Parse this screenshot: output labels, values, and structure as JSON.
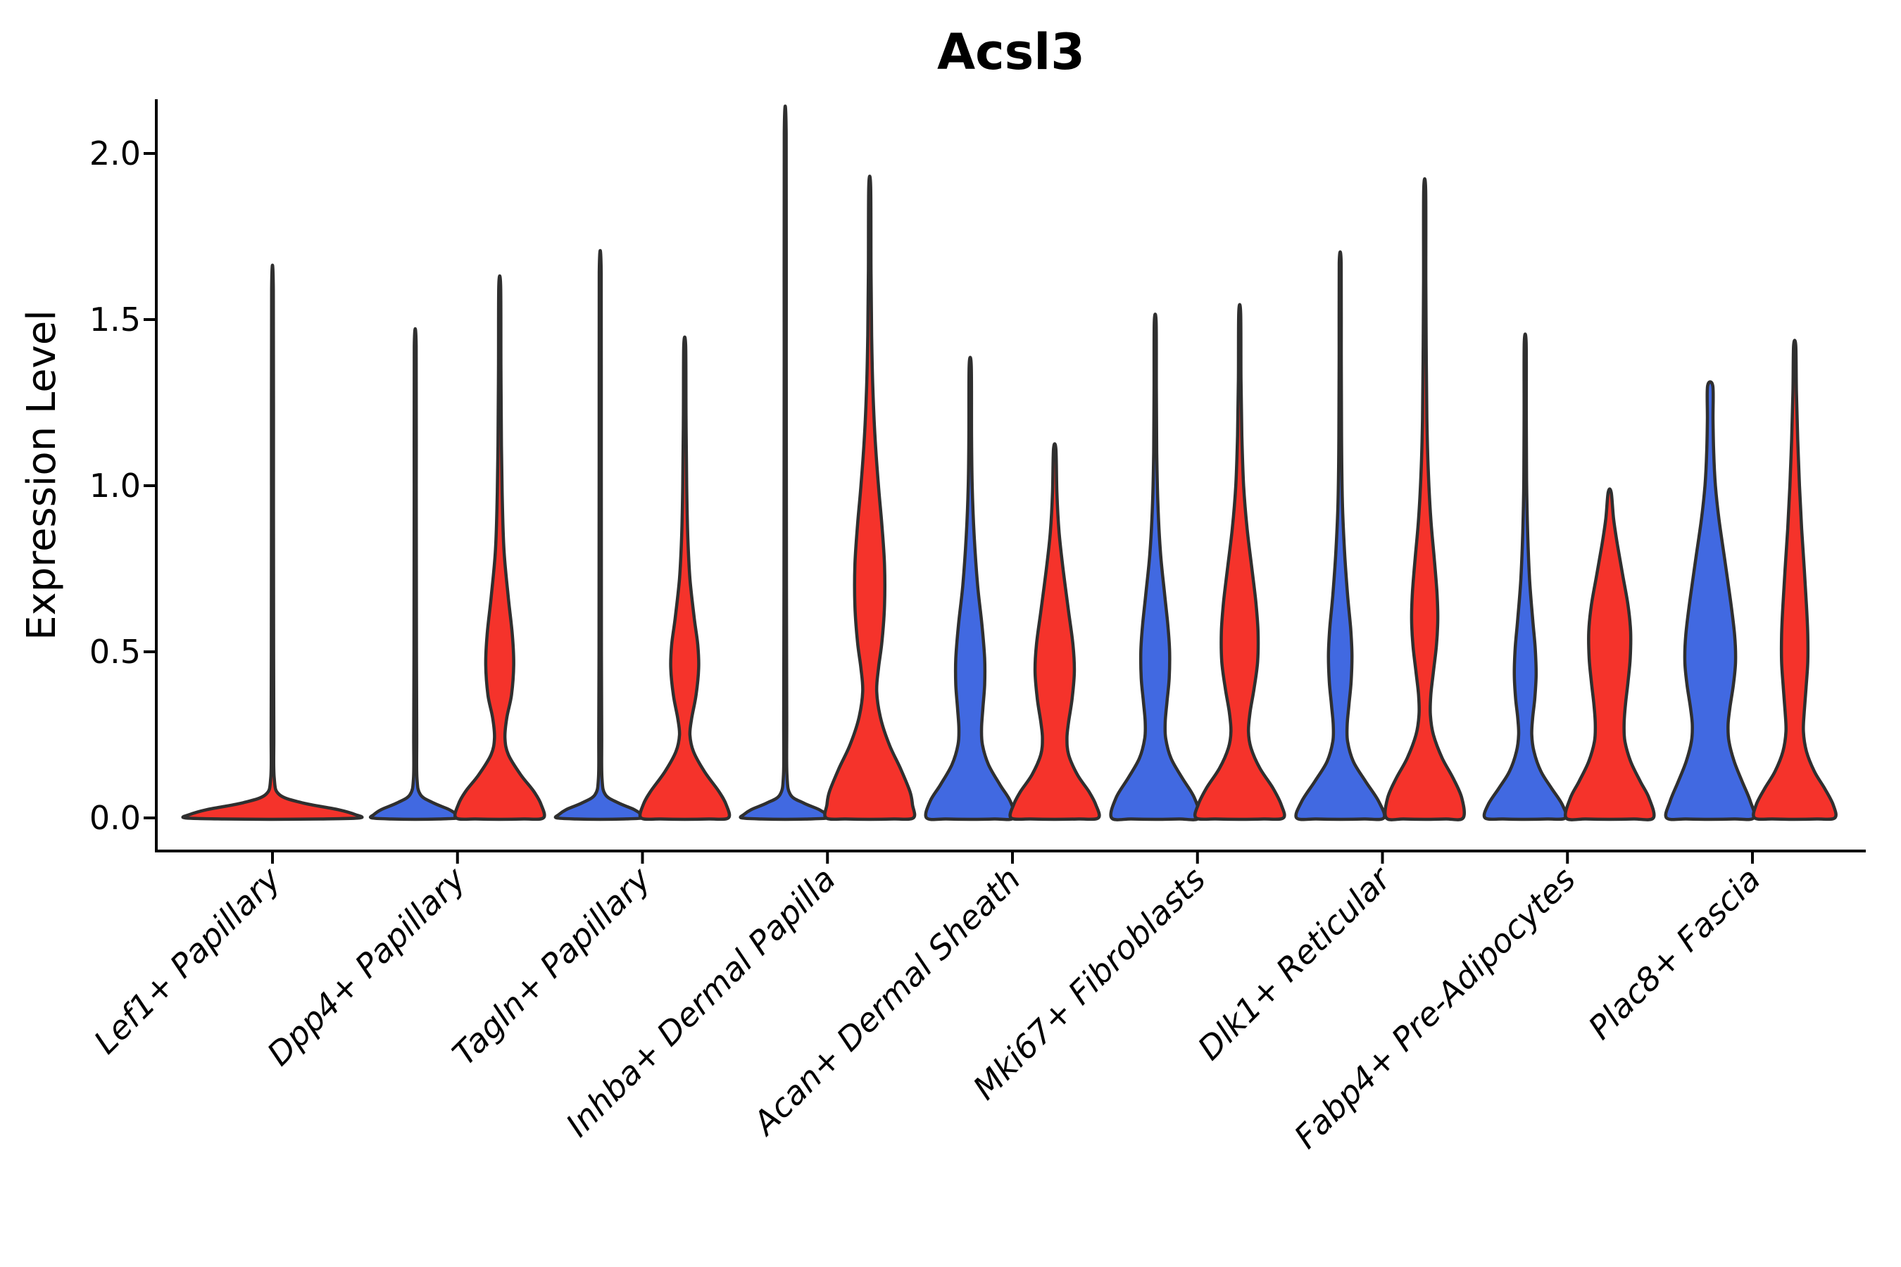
{
  "chart_data": {
    "type": "violin",
    "title": "Acsl3",
    "ylabel": "Expression Level",
    "xlabel": "",
    "ylim": [
      -0.07,
      2.16
    ],
    "grid": false,
    "legend": "none",
    "yticks": {
      "values": [
        0.0,
        0.5,
        1.0,
        1.5,
        2.0
      ],
      "labels": [
        "0.0",
        "0.5",
        "1.0",
        "1.5",
        "2.0"
      ]
    },
    "categories": [
      "Lef1+ Papillary",
      "Dpp4+ Papillary",
      "Tagln+ Papillary",
      "Inhba+ Dermal Papilla",
      "Acan+ Dermal Sheath",
      "Mki67+ Fibroblasts",
      "Dlk1+ Reticular",
      "Fabp4+ Pre-Adipocytes",
      "Plac8+ Fascia"
    ],
    "palette": {
      "blue": "#4169E1",
      "red": "#F5332B",
      "outline": "#2F2F2F",
      "axis": "#000000"
    },
    "violins": [
      {
        "category_index": 0,
        "side": "center",
        "color_key": "red",
        "max_value": 1.59,
        "profile": [
          [
            1.59,
            0.01
          ],
          [
            1.0,
            0.011
          ],
          [
            0.5,
            0.013
          ],
          [
            0.25,
            0.015
          ],
          [
            0.12,
            0.02
          ],
          [
            0.07,
            0.08
          ],
          [
            0.045,
            0.35
          ],
          [
            0.025,
            0.75
          ],
          [
            0.01,
            0.95
          ],
          [
            0,
            1.0
          ]
        ]
      },
      {
        "category_index": 1,
        "side": "left",
        "color_key": "blue",
        "max_value": 1.42,
        "profile": [
          [
            1.42,
            0.022
          ],
          [
            1.0,
            0.024
          ],
          [
            0.5,
            0.028
          ],
          [
            0.25,
            0.034
          ],
          [
            0.12,
            0.04
          ],
          [
            0.07,
            0.12
          ],
          [
            0.045,
            0.42
          ],
          [
            0.025,
            0.78
          ],
          [
            0.01,
            0.95
          ],
          [
            0,
            1.0
          ]
        ]
      },
      {
        "category_index": 1,
        "side": "right",
        "color_key": "red",
        "max_value": 1.6,
        "profile": [
          [
            1.6,
            0.022
          ],
          [
            1.35,
            0.028
          ],
          [
            1.12,
            0.04
          ],
          [
            0.95,
            0.06
          ],
          [
            0.8,
            0.1
          ],
          [
            0.66,
            0.2
          ],
          [
            0.55,
            0.29
          ],
          [
            0.46,
            0.32
          ],
          [
            0.37,
            0.27
          ],
          [
            0.3,
            0.16
          ],
          [
            0.24,
            0.12
          ],
          [
            0.19,
            0.2
          ],
          [
            0.13,
            0.48
          ],
          [
            0.08,
            0.78
          ],
          [
            0.04,
            0.95
          ],
          [
            0,
            1.0
          ]
        ]
      },
      {
        "category_index": 2,
        "side": "left",
        "color_key": "blue",
        "max_value": 1.64,
        "profile": [
          [
            1.64,
            0.022
          ],
          [
            1.1,
            0.024
          ],
          [
            0.5,
            0.028
          ],
          [
            0.25,
            0.034
          ],
          [
            0.12,
            0.04
          ],
          [
            0.07,
            0.12
          ],
          [
            0.045,
            0.42
          ],
          [
            0.025,
            0.78
          ],
          [
            0.01,
            0.95
          ],
          [
            0,
            1.0
          ]
        ]
      },
      {
        "category_index": 2,
        "side": "right",
        "color_key": "red",
        "max_value": 1.42,
        "profile": [
          [
            1.42,
            0.022
          ],
          [
            1.2,
            0.03
          ],
          [
            1.0,
            0.045
          ],
          [
            0.85,
            0.07
          ],
          [
            0.72,
            0.12
          ],
          [
            0.6,
            0.22
          ],
          [
            0.52,
            0.3
          ],
          [
            0.45,
            0.32
          ],
          [
            0.37,
            0.26
          ],
          [
            0.3,
            0.16
          ],
          [
            0.25,
            0.12
          ],
          [
            0.2,
            0.2
          ],
          [
            0.14,
            0.45
          ],
          [
            0.08,
            0.78
          ],
          [
            0.04,
            0.95
          ],
          [
            0,
            1.0
          ]
        ]
      },
      {
        "category_index": 3,
        "side": "left",
        "color_key": "blue",
        "max_value": 2.06,
        "profile": [
          [
            2.06,
            0.022
          ],
          [
            1.4,
            0.024
          ],
          [
            0.7,
            0.028
          ],
          [
            0.3,
            0.034
          ],
          [
            0.13,
            0.04
          ],
          [
            0.07,
            0.12
          ],
          [
            0.045,
            0.42
          ],
          [
            0.025,
            0.78
          ],
          [
            0.01,
            0.95
          ],
          [
            0,
            1.0
          ]
        ]
      },
      {
        "category_index": 3,
        "side": "right",
        "color_key": "red",
        "max_value": 1.9,
        "profile": [
          [
            1.9,
            0.022
          ],
          [
            1.65,
            0.03
          ],
          [
            1.45,
            0.045
          ],
          [
            1.3,
            0.07
          ],
          [
            1.15,
            0.12
          ],
          [
            1.0,
            0.2
          ],
          [
            0.88,
            0.28
          ],
          [
            0.76,
            0.34
          ],
          [
            0.64,
            0.34
          ],
          [
            0.53,
            0.28
          ],
          [
            0.45,
            0.2
          ],
          [
            0.38,
            0.16
          ],
          [
            0.3,
            0.25
          ],
          [
            0.22,
            0.45
          ],
          [
            0.15,
            0.7
          ],
          [
            0.08,
            0.92
          ],
          [
            0.04,
            0.98
          ],
          [
            0,
            1.0
          ]
        ]
      },
      {
        "category_index": 4,
        "side": "left",
        "color_key": "blue",
        "max_value": 1.36,
        "profile": [
          [
            1.36,
            0.025
          ],
          [
            1.15,
            0.03
          ],
          [
            1.0,
            0.045
          ],
          [
            0.85,
            0.09
          ],
          [
            0.7,
            0.17
          ],
          [
            0.58,
            0.27
          ],
          [
            0.48,
            0.33
          ],
          [
            0.4,
            0.33
          ],
          [
            0.33,
            0.29
          ],
          [
            0.27,
            0.26
          ],
          [
            0.22,
            0.28
          ],
          [
            0.16,
            0.42
          ],
          [
            0.1,
            0.68
          ],
          [
            0.05,
            0.92
          ],
          [
            0,
            1.0
          ]
        ]
      },
      {
        "category_index": 4,
        "side": "right",
        "color_key": "red",
        "max_value": 1.11,
        "profile": [
          [
            1.11,
            0.028
          ],
          [
            0.98,
            0.05
          ],
          [
            0.86,
            0.1
          ],
          [
            0.74,
            0.2
          ],
          [
            0.62,
            0.32
          ],
          [
            0.52,
            0.42
          ],
          [
            0.44,
            0.45
          ],
          [
            0.36,
            0.4
          ],
          [
            0.29,
            0.32
          ],
          [
            0.24,
            0.28
          ],
          [
            0.19,
            0.32
          ],
          [
            0.13,
            0.52
          ],
          [
            0.08,
            0.78
          ],
          [
            0.04,
            0.94
          ],
          [
            0,
            1.0
          ]
        ]
      },
      {
        "category_index": 5,
        "side": "left",
        "color_key": "blue",
        "max_value": 1.49,
        "profile": [
          [
            1.49,
            0.022
          ],
          [
            1.28,
            0.026
          ],
          [
            1.1,
            0.035
          ],
          [
            0.95,
            0.06
          ],
          [
            0.8,
            0.12
          ],
          [
            0.68,
            0.21
          ],
          [
            0.58,
            0.29
          ],
          [
            0.5,
            0.33
          ],
          [
            0.42,
            0.32
          ],
          [
            0.35,
            0.27
          ],
          [
            0.29,
            0.23
          ],
          [
            0.24,
            0.24
          ],
          [
            0.18,
            0.36
          ],
          [
            0.12,
            0.62
          ],
          [
            0.06,
            0.9
          ],
          [
            0,
            1.0
          ]
        ]
      },
      {
        "category_index": 5,
        "side": "right",
        "color_key": "red",
        "max_value": 1.52,
        "profile": [
          [
            1.52,
            0.022
          ],
          [
            1.32,
            0.03
          ],
          [
            1.15,
            0.05
          ],
          [
            1.0,
            0.09
          ],
          [
            0.87,
            0.17
          ],
          [
            0.75,
            0.28
          ],
          [
            0.65,
            0.37
          ],
          [
            0.56,
            0.42
          ],
          [
            0.47,
            0.41
          ],
          [
            0.39,
            0.33
          ],
          [
            0.32,
            0.24
          ],
          [
            0.26,
            0.2
          ],
          [
            0.21,
            0.26
          ],
          [
            0.15,
            0.46
          ],
          [
            0.09,
            0.76
          ],
          [
            0.04,
            0.95
          ],
          [
            0,
            1.0
          ]
        ]
      },
      {
        "category_index": 6,
        "side": "left",
        "color_key": "blue",
        "max_value": 1.67,
        "profile": [
          [
            1.67,
            0.022
          ],
          [
            1.4,
            0.024
          ],
          [
            1.15,
            0.03
          ],
          [
            0.95,
            0.05
          ],
          [
            0.8,
            0.1
          ],
          [
            0.67,
            0.17
          ],
          [
            0.57,
            0.24
          ],
          [
            0.49,
            0.27
          ],
          [
            0.41,
            0.25
          ],
          [
            0.34,
            0.2
          ],
          [
            0.28,
            0.16
          ],
          [
            0.23,
            0.17
          ],
          [
            0.17,
            0.3
          ],
          [
            0.11,
            0.58
          ],
          [
            0.05,
            0.88
          ],
          [
            0,
            1.0
          ]
        ]
      },
      {
        "category_index": 6,
        "side": "right",
        "color_key": "red",
        "max_value": 1.89,
        "profile": [
          [
            1.89,
            0.022
          ],
          [
            1.62,
            0.026
          ],
          [
            1.4,
            0.035
          ],
          [
            1.2,
            0.05
          ],
          [
            1.05,
            0.08
          ],
          [
            0.9,
            0.14
          ],
          [
            0.78,
            0.22
          ],
          [
            0.68,
            0.28
          ],
          [
            0.6,
            0.3
          ],
          [
            0.52,
            0.27
          ],
          [
            0.44,
            0.2
          ],
          [
            0.37,
            0.14
          ],
          [
            0.31,
            0.13
          ],
          [
            0.25,
            0.2
          ],
          [
            0.18,
            0.4
          ],
          [
            0.12,
            0.65
          ],
          [
            0.06,
            0.85
          ],
          [
            0,
            0.88
          ]
        ]
      },
      {
        "category_index": 7,
        "side": "left",
        "color_key": "blue",
        "max_value": 1.43,
        "profile": [
          [
            1.43,
            0.022
          ],
          [
            1.22,
            0.025
          ],
          [
            1.02,
            0.032
          ],
          [
            0.86,
            0.055
          ],
          [
            0.72,
            0.1
          ],
          [
            0.6,
            0.17
          ],
          [
            0.51,
            0.23
          ],
          [
            0.43,
            0.25
          ],
          [
            0.36,
            0.22
          ],
          [
            0.3,
            0.17
          ],
          [
            0.25,
            0.15
          ],
          [
            0.2,
            0.2
          ],
          [
            0.14,
            0.36
          ],
          [
            0.09,
            0.6
          ],
          [
            0.04,
            0.85
          ],
          [
            0,
            0.92
          ]
        ]
      },
      {
        "category_index": 7,
        "side": "right",
        "color_key": "red",
        "max_value": 0.98,
        "profile": [
          [
            0.98,
            0.035
          ],
          [
            0.9,
            0.09
          ],
          [
            0.82,
            0.18
          ],
          [
            0.73,
            0.3
          ],
          [
            0.64,
            0.42
          ],
          [
            0.56,
            0.48
          ],
          [
            0.48,
            0.47
          ],
          [
            0.41,
            0.42
          ],
          [
            0.34,
            0.36
          ],
          [
            0.28,
            0.33
          ],
          [
            0.23,
            0.35
          ],
          [
            0.17,
            0.48
          ],
          [
            0.11,
            0.7
          ],
          [
            0.06,
            0.9
          ],
          [
            0,
            1.0
          ]
        ]
      },
      {
        "category_index": 8,
        "side": "left",
        "color_key": "blue",
        "max_value": 1.3,
        "profile": [
          [
            1.3,
            0.06
          ],
          [
            1.2,
            0.065
          ],
          [
            1.1,
            0.08
          ],
          [
            1.0,
            0.12
          ],
          [
            0.9,
            0.2
          ],
          [
            0.78,
            0.33
          ],
          [
            0.66,
            0.46
          ],
          [
            0.55,
            0.56
          ],
          [
            0.47,
            0.58
          ],
          [
            0.4,
            0.53
          ],
          [
            0.33,
            0.45
          ],
          [
            0.28,
            0.41
          ],
          [
            0.23,
            0.43
          ],
          [
            0.17,
            0.55
          ],
          [
            0.11,
            0.73
          ],
          [
            0.05,
            0.92
          ],
          [
            0,
            1.0
          ]
        ]
      },
      {
        "category_index": 8,
        "side": "right",
        "color_key": "red",
        "max_value": 1.42,
        "profile": [
          [
            1.42,
            0.025
          ],
          [
            1.28,
            0.04
          ],
          [
            1.14,
            0.07
          ],
          [
            1.0,
            0.11
          ],
          [
            0.87,
            0.16
          ],
          [
            0.75,
            0.22
          ],
          [
            0.64,
            0.27
          ],
          [
            0.55,
            0.3
          ],
          [
            0.47,
            0.3
          ],
          [
            0.39,
            0.26
          ],
          [
            0.32,
            0.22
          ],
          [
            0.26,
            0.2
          ],
          [
            0.2,
            0.27
          ],
          [
            0.14,
            0.45
          ],
          [
            0.09,
            0.68
          ],
          [
            0.04,
            0.88
          ],
          [
            0,
            0.92
          ]
        ]
      }
    ]
  }
}
